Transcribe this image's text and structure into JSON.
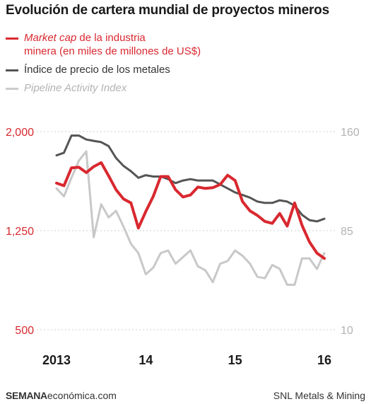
{
  "title": "Evolución de cartera mundial de proyectos mineros",
  "legend": {
    "red_italic": "Market cap",
    "red_rest_line1": " de la industria",
    "red_line2": "minera (en miles de millones de US$)",
    "dark": "Índice de precio de los metales",
    "grey": "Pipeline Activity Index"
  },
  "footer": {
    "left_brand": "SEMANA",
    "left_rest": "económica.com",
    "right": "SNL Metals & Mining"
  },
  "chart_data": {
    "type": "line",
    "x_ticks": [
      {
        "label": "2013",
        "x": 0
      },
      {
        "label": "14",
        "x": 12
      },
      {
        "label": "15",
        "x": 24
      },
      {
        "label": "16",
        "x": 36
      }
    ],
    "left_axis": {
      "ticks": [
        "2,000",
        "1,250",
        "500"
      ],
      "ylim": [
        500,
        2000
      ],
      "color": "#d9282f"
    },
    "right_axis": {
      "ticks": [
        "160",
        "85",
        "10"
      ],
      "ylim": [
        10,
        160
      ],
      "color": "#b3b3b3"
    },
    "series": [
      {
        "name": "Market cap de la industria minera (en miles de millones de US$)",
        "axis": "left",
        "color": "#d9282f",
        "x": [
          0,
          1,
          2,
          3,
          4,
          5,
          6,
          7,
          8,
          9,
          10,
          11,
          12,
          13,
          14,
          15,
          16,
          17,
          18,
          19,
          20,
          21,
          22,
          23,
          24,
          25,
          26,
          27,
          28,
          29,
          30,
          31,
          32,
          33,
          34,
          35,
          36
        ],
        "values": [
          1610,
          1590,
          1725,
          1730,
          1690,
          1735,
          1765,
          1665,
          1560,
          1490,
          1460,
          1270,
          1395,
          1510,
          1660,
          1660,
          1560,
          1505,
          1520,
          1580,
          1570,
          1575,
          1600,
          1670,
          1630,
          1470,
          1400,
          1365,
          1320,
          1305,
          1380,
          1285,
          1460,
          1290,
          1165,
          1080,
          1040
        ]
      },
      {
        "name": "Índice de precio de los metales",
        "axis": "right",
        "color": "#555555",
        "x": [
          0,
          1,
          2,
          3,
          4,
          5,
          6,
          7,
          8,
          9,
          10,
          11,
          12,
          13,
          14,
          15,
          16,
          17,
          18,
          19,
          20,
          21,
          22,
          23,
          24,
          25,
          26,
          27,
          28,
          29,
          30,
          31,
          32,
          33,
          34,
          35,
          36
        ],
        "values": [
          142,
          144,
          157,
          157,
          154,
          153,
          152,
          149,
          140,
          134,
          130,
          125,
          127,
          126,
          126,
          124,
          121,
          123,
          124,
          123,
          123,
          123,
          120,
          117,
          114,
          112,
          110,
          107,
          106,
          106,
          108,
          107,
          104,
          97,
          93,
          92,
          94
        ]
      },
      {
        "name": "Pipeline Activity Index",
        "axis": "right",
        "color": "#c8c8c8",
        "x": [
          0,
          1,
          2,
          3,
          4,
          5,
          6,
          7,
          8,
          9,
          10,
          11,
          12,
          13,
          14,
          15,
          16,
          17,
          18,
          19,
          20,
          21,
          22,
          23,
          24,
          25,
          26,
          27,
          28,
          29,
          30,
          31,
          32,
          33,
          34,
          35,
          36
        ],
        "values": [
          117,
          111,
          125,
          138,
          145,
          80,
          105,
          95,
          100,
          88,
          75,
          68,
          52,
          57,
          68,
          70,
          60,
          65,
          70,
          58,
          55,
          46,
          60,
          62,
          70,
          66,
          60,
          50,
          49,
          59,
          56,
          44,
          44,
          64,
          64,
          56,
          68
        ]
      }
    ]
  }
}
